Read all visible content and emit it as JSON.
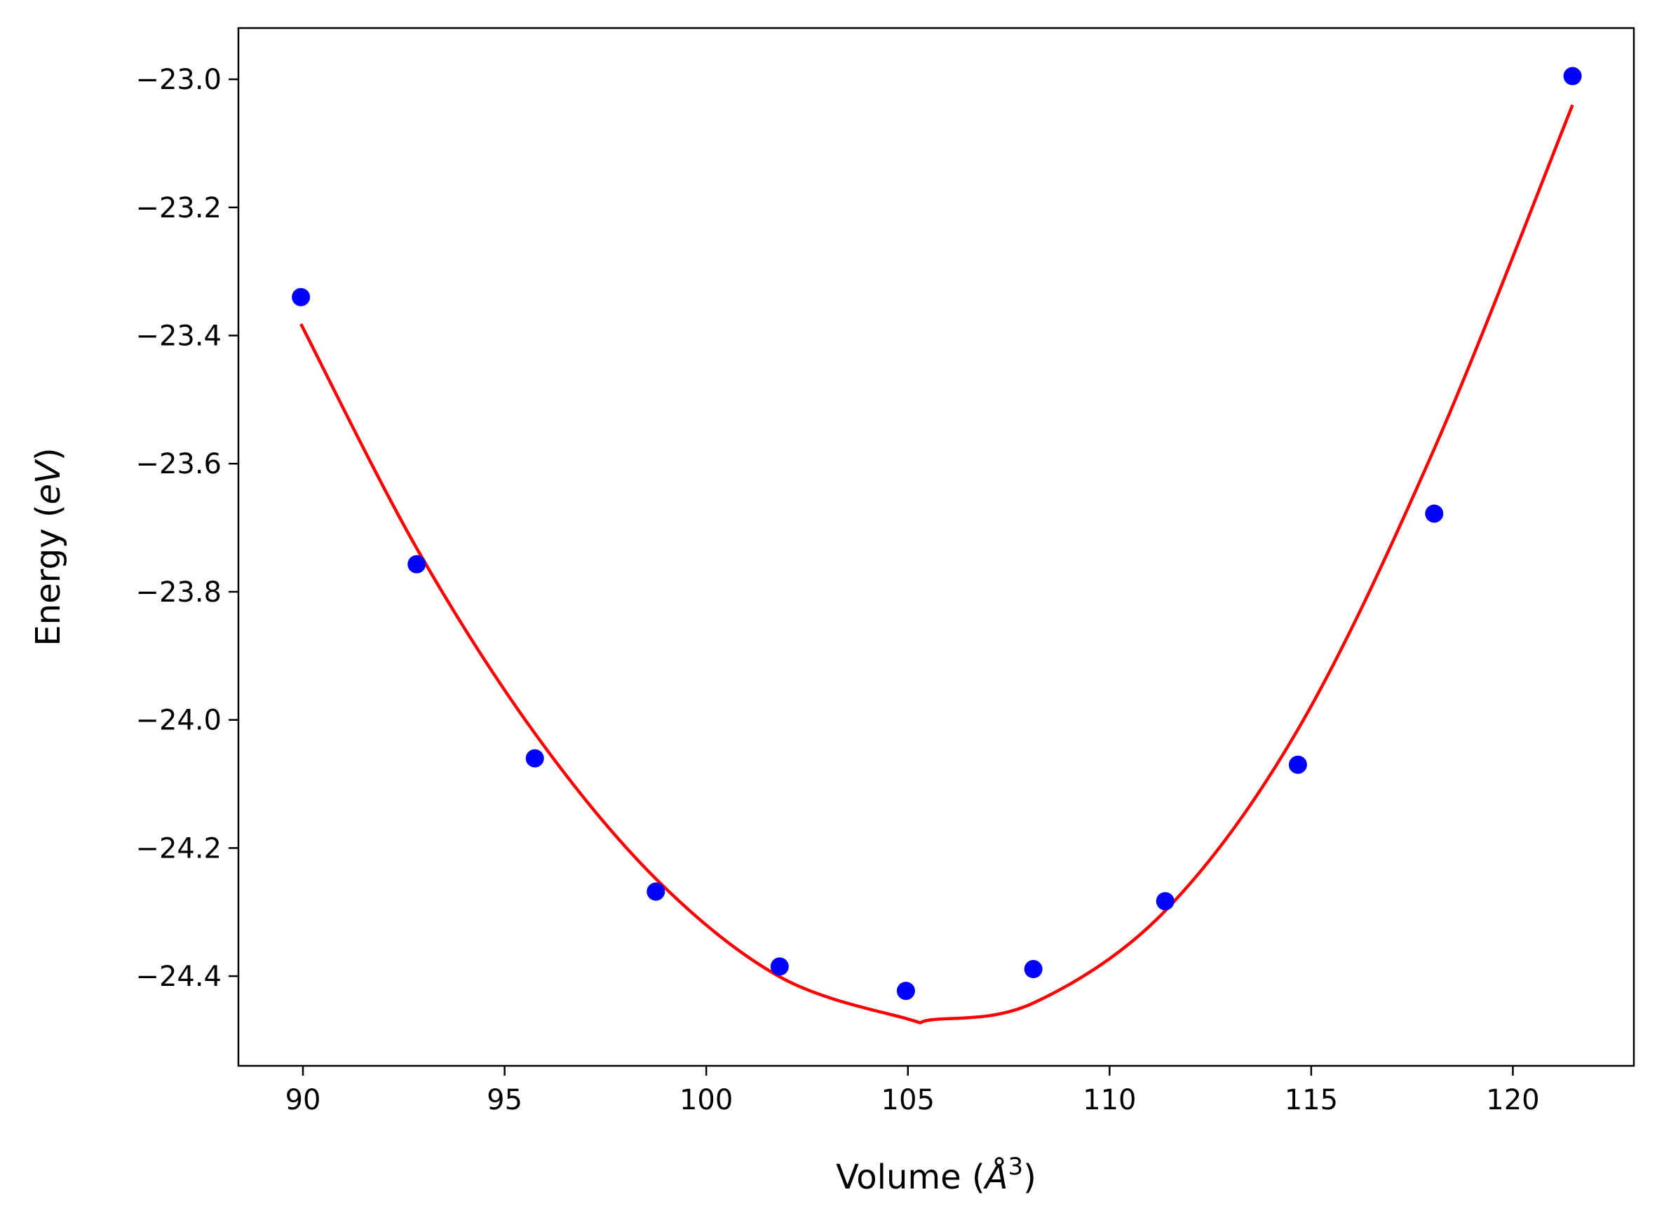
{
  "chart_data": {
    "type": "scatter",
    "xlabel": {
      "prefix": "Volume (",
      "symbol": "Å",
      "superscript": "3",
      "suffix": ")"
    },
    "ylabel": {
      "prefix": "Energy (",
      "unit": "eV",
      "suffix": ")"
    },
    "xlim": [
      88.4,
      123.0
    ],
    "ylim": [
      -24.54,
      -22.92
    ],
    "xticks": [
      90,
      95,
      100,
      105,
      110,
      115,
      120
    ],
    "xtick_labels": [
      "90",
      "95",
      "100",
      "105",
      "110",
      "115",
      "120"
    ],
    "yticks": [
      -23.0,
      -23.2,
      -23.4,
      -23.6,
      -23.8,
      -24.0,
      -24.2,
      -24.4
    ],
    "ytick_labels": [
      "−23.0",
      "−23.2",
      "−23.4",
      "−23.6",
      "−23.8",
      "−24.0",
      "−24.2",
      "−24.4"
    ],
    "grid": false,
    "series": [
      {
        "kind": "scatter",
        "color": "#0000ff",
        "x": [
          89.95,
          92.82,
          95.75,
          98.75,
          101.82,
          104.95,
          108.11,
          111.38,
          114.67,
          118.05,
          121.48
        ],
        "y": [
          -23.34,
          -23.757,
          -24.06,
          -24.268,
          -24.385,
          -24.423,
          -24.389,
          -24.283,
          -24.07,
          -23.678,
          -22.995
        ]
      },
      {
        "kind": "line",
        "color": "#ff0000",
        "fit": "cubic",
        "x": [
          89.95,
          92.82,
          95.75,
          98.75,
          101.82,
          104.95,
          105.6,
          108.11,
          111.38,
          114.67,
          118.05,
          121.48
        ],
        "y": [
          -23.382,
          -23.732,
          -24.021,
          -24.248,
          -24.401,
          -24.466,
          -24.468,
          -24.442,
          -24.298,
          -24.015,
          -23.577,
          -23.04
        ]
      }
    ]
  }
}
